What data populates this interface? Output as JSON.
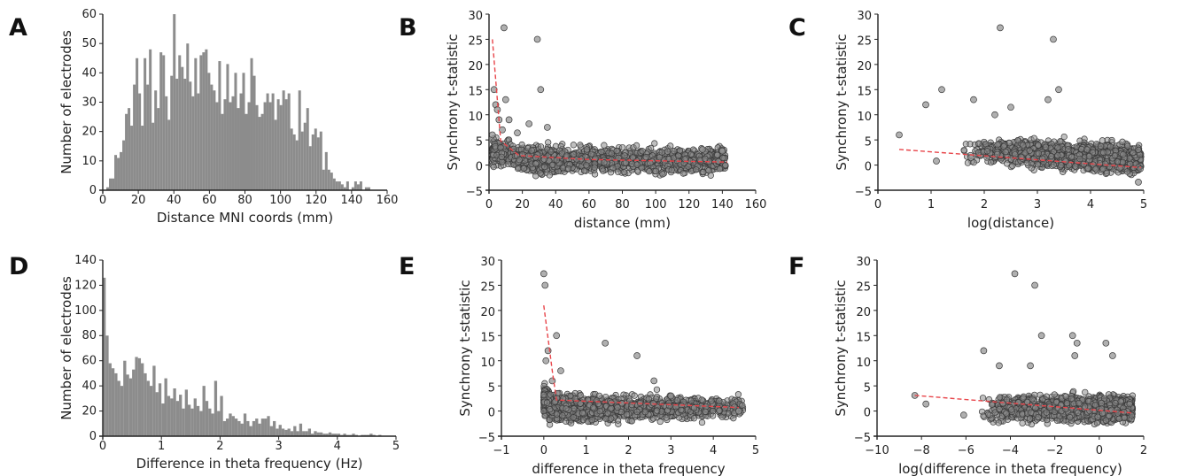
{
  "chart_data": [
    {
      "panel": "A",
      "type": "bar",
      "xlabel": "Distance MNI coords (mm)",
      "ylabel": "Number of electrodes",
      "xlim": [
        0,
        160
      ],
      "ylim": [
        0,
        60
      ],
      "xticks": [
        0,
        20,
        40,
        60,
        80,
        100,
        120,
        140,
        160
      ],
      "yticks": [
        0,
        10,
        20,
        30,
        40,
        50,
        60
      ],
      "bin_width": 1.5,
      "bin_start": 2,
      "values": [
        1,
        4,
        4,
        12,
        11,
        13,
        17,
        26,
        28,
        22,
        36,
        45,
        33,
        22,
        45,
        36,
        48,
        23,
        34,
        28,
        47,
        46,
        32,
        24,
        39,
        60,
        38,
        46,
        42,
        38,
        50,
        37,
        32,
        45,
        33,
        46,
        47,
        48,
        40,
        36,
        34,
        30,
        44,
        26,
        31,
        43,
        30,
        32,
        40,
        28,
        33,
        40,
        26,
        30,
        45,
        39,
        29,
        25,
        26,
        30,
        33,
        30,
        33,
        24,
        31,
        29,
        34,
        31,
        33,
        21,
        19,
        17,
        34,
        20,
        23,
        28,
        15,
        19,
        21,
        18,
        20,
        7,
        13,
        7,
        6,
        4,
        3,
        3,
        2,
        1,
        3,
        0,
        1,
        3,
        2,
        3,
        0,
        1,
        1
      ],
      "color": "#8c8c8c"
    },
    {
      "panel": "B",
      "type": "scatter",
      "xlabel": "distance (mm)",
      "ylabel": "Synchrony t-statistic",
      "xlim": [
        0,
        160
      ],
      "ylim": [
        -5,
        30
      ],
      "xticks": [
        0,
        20,
        40,
        60,
        80,
        100,
        120,
        140,
        160
      ],
      "yticks": [
        -5,
        0,
        5,
        10,
        15,
        20,
        25,
        30
      ],
      "outliers": [
        [
          9,
          27.3
        ],
        [
          29,
          25
        ],
        [
          31,
          15
        ],
        [
          3,
          15
        ],
        [
          4,
          12
        ],
        [
          5,
          11
        ],
        [
          6,
          9
        ],
        [
          10,
          13
        ],
        [
          12,
          9
        ],
        [
          35,
          7.5
        ],
        [
          24,
          8.2
        ],
        [
          17,
          6.4
        ],
        [
          8,
          7
        ],
        [
          2,
          6
        ],
        [
          140,
          2.8
        ],
        [
          128,
          3.1
        ]
      ],
      "fit_line": [
        [
          2,
          25
        ],
        [
          7,
          4.8
        ],
        [
          18,
          1.9
        ],
        [
          60,
          1.1
        ],
        [
          143,
          0.6
        ]
      ],
      "color": "#8c8c8c",
      "fit_color": "#e8454a"
    },
    {
      "panel": "C",
      "type": "scatter",
      "xlabel": "log(distance)",
      "ylabel": "Synchrony t-statistic",
      "xlim": [
        0,
        5
      ],
      "ylim": [
        -5,
        30
      ],
      "xticks": [
        0,
        1,
        2,
        3,
        4,
        5
      ],
      "yticks": [
        -5,
        0,
        5,
        10,
        15,
        20,
        25,
        30
      ],
      "outliers": [
        [
          0.4,
          6
        ],
        [
          0.9,
          12
        ],
        [
          1.2,
          15
        ],
        [
          2.3,
          27.3
        ],
        [
          3.3,
          25
        ],
        [
          3.4,
          15
        ],
        [
          1.8,
          13
        ],
        [
          2.5,
          11.5
        ],
        [
          2.2,
          10
        ],
        [
          3.2,
          13
        ],
        [
          1.1,
          0.8
        ],
        [
          1.75,
          1.5
        ],
        [
          4.9,
          -3.4
        ]
      ],
      "fit_line": [
        [
          0.4,
          3.1
        ],
        [
          4.95,
          -0.5
        ]
      ],
      "color": "#8c8c8c",
      "fit_color": "#e8454a"
    },
    {
      "panel": "D",
      "type": "bar",
      "xlabel": "Difference in theta frequency (Hz)",
      "ylabel": "Number of electrodes",
      "xlim": [
        0,
        5
      ],
      "ylim": [
        0,
        140
      ],
      "xticks": [
        0,
        1,
        2,
        3,
        4,
        5
      ],
      "yticks": [
        0,
        20,
        40,
        60,
        80,
        100,
        120,
        140
      ],
      "bin_width": 0.05,
      "bin_start": 0,
      "values": [
        126,
        80,
        58,
        54,
        50,
        44,
        40,
        60,
        49,
        46,
        53,
        63,
        62,
        58,
        50,
        44,
        40,
        56,
        35,
        42,
        26,
        46,
        32,
        30,
        38,
        28,
        33,
        22,
        37,
        25,
        22,
        30,
        24,
        20,
        40,
        28,
        22,
        18,
        44,
        20,
        32,
        12,
        14,
        18,
        16,
        14,
        12,
        10,
        18,
        12,
        8,
        12,
        14,
        10,
        14,
        14,
        16,
        8,
        12,
        6,
        9,
        6,
        5,
        6,
        4,
        8,
        4,
        10,
        4,
        4,
        6,
        2,
        4,
        3,
        3,
        2,
        2,
        3,
        2,
        2,
        2,
        1,
        2,
        1,
        1,
        2,
        1,
        0,
        1,
        1,
        1,
        2,
        1,
        0,
        1
      ],
      "color": "#8c8c8c"
    },
    {
      "panel": "E",
      "type": "scatter",
      "xlabel": "difference in theta frequency",
      "ylabel": "Synchrony t-statistic",
      "xlim": [
        -1,
        5
      ],
      "ylim": [
        -5,
        30
      ],
      "xticks": [
        -1,
        0,
        1,
        2,
        3,
        4,
        5
      ],
      "yticks": [
        -5,
        0,
        5,
        10,
        15,
        20,
        25,
        30
      ],
      "outliers": [
        [
          0.0,
          27.3
        ],
        [
          0.03,
          25
        ],
        [
          0.3,
          15
        ],
        [
          1.45,
          13.5
        ],
        [
          2.2,
          11
        ],
        [
          0.1,
          12
        ],
        [
          0.05,
          10
        ],
        [
          2.6,
          6
        ],
        [
          0.4,
          8
        ],
        [
          0.2,
          6
        ],
        [
          3.0,
          3
        ],
        [
          4.6,
          0
        ]
      ],
      "fit_line": [
        [
          0,
          21
        ],
        [
          0.2,
          8
        ],
        [
          0.3,
          2.2
        ],
        [
          4.6,
          0.7
        ]
      ],
      "color": "#8c8c8c",
      "fit_color": "#e8454a"
    },
    {
      "panel": "F",
      "type": "scatter",
      "xlabel": "log(difference in theta frequency)",
      "ylabel": "Synchrony t-statistic",
      "xlim": [
        -10,
        2
      ],
      "ylim": [
        -5,
        30
      ],
      "xticks": [
        -10,
        -8,
        -6,
        -4,
        -2,
        0,
        2
      ],
      "yticks": [
        -5,
        0,
        5,
        10,
        15,
        20,
        25,
        30
      ],
      "outliers": [
        [
          -8.3,
          3.1
        ],
        [
          -3.8,
          27.3
        ],
        [
          -2.9,
          25
        ],
        [
          -2.6,
          15
        ],
        [
          -1.2,
          15
        ],
        [
          -1.0,
          13.5
        ],
        [
          0.3,
          13.5
        ],
        [
          -5.2,
          12
        ],
        [
          -1.1,
          11
        ],
        [
          0.6,
          11
        ],
        [
          -3.1,
          9
        ],
        [
          -4.5,
          9
        ],
        [
          -6.1,
          -0.8
        ],
        [
          -7.8,
          1.4
        ]
      ],
      "fit_line": [
        [
          -8.3,
          3.1
        ],
        [
          1.5,
          -0.4
        ]
      ],
      "color": "#8c8c8c",
      "fit_color": "#e8454a"
    }
  ]
}
